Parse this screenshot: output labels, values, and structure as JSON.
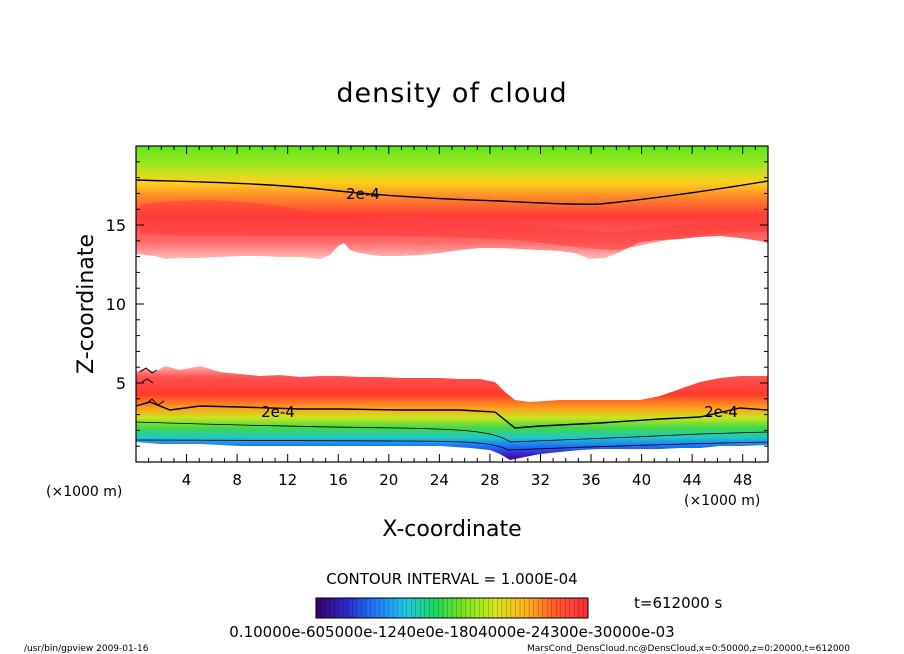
{
  "chart_data": {
    "type": "heatmap",
    "title": "density of cloud",
    "xlabel": "X-coordinate",
    "ylabel": "Z-coordinate",
    "x_unit": "(×1000 m)",
    "y_unit": "(×1000 m)",
    "xlim": [
      0,
      50
    ],
    "ylim": [
      0,
      20
    ],
    "x_ticks": [
      "4",
      "8",
      "12",
      "16",
      "20",
      "24",
      "28",
      "32",
      "36",
      "40",
      "44",
      "48"
    ],
    "y_ticks": [
      "5",
      "10",
      "15"
    ],
    "contour_interval_label": "CONTOUR INTERVAL = 1.000E-04",
    "contour_labels": [
      "2e-4",
      "2e-4",
      "2e-4"
    ],
    "time_label": "t=612000 s",
    "colorbar_labels": "0.10000e-605000e-1240e0e-1804000e-24300e-30000e-03",
    "colorscale": [
      "#3a006a",
      "#2b28c8",
      "#1f7cff",
      "#21c8e6",
      "#1ed85a",
      "#7fe61e",
      "#d8e61e",
      "#ffb41e",
      "#ff5a2a",
      "#ff2a3c"
    ],
    "footer_left": "/usr/bin/gpview   2009-01-16",
    "footer_right": "MarsCond_DensCloud.nc@DensCloud,x=0:50000,z=0:20000,t=612000",
    "cloud_layers": [
      {
        "name": "upper",
        "z_bottom": 12.9,
        "z_top": 20,
        "contour_2e-4_z": 17.7
      },
      {
        "name": "lower",
        "z_bottom": 0.5,
        "z_top": 5.4,
        "contour_2e-4_z": 3.2
      }
    ]
  }
}
